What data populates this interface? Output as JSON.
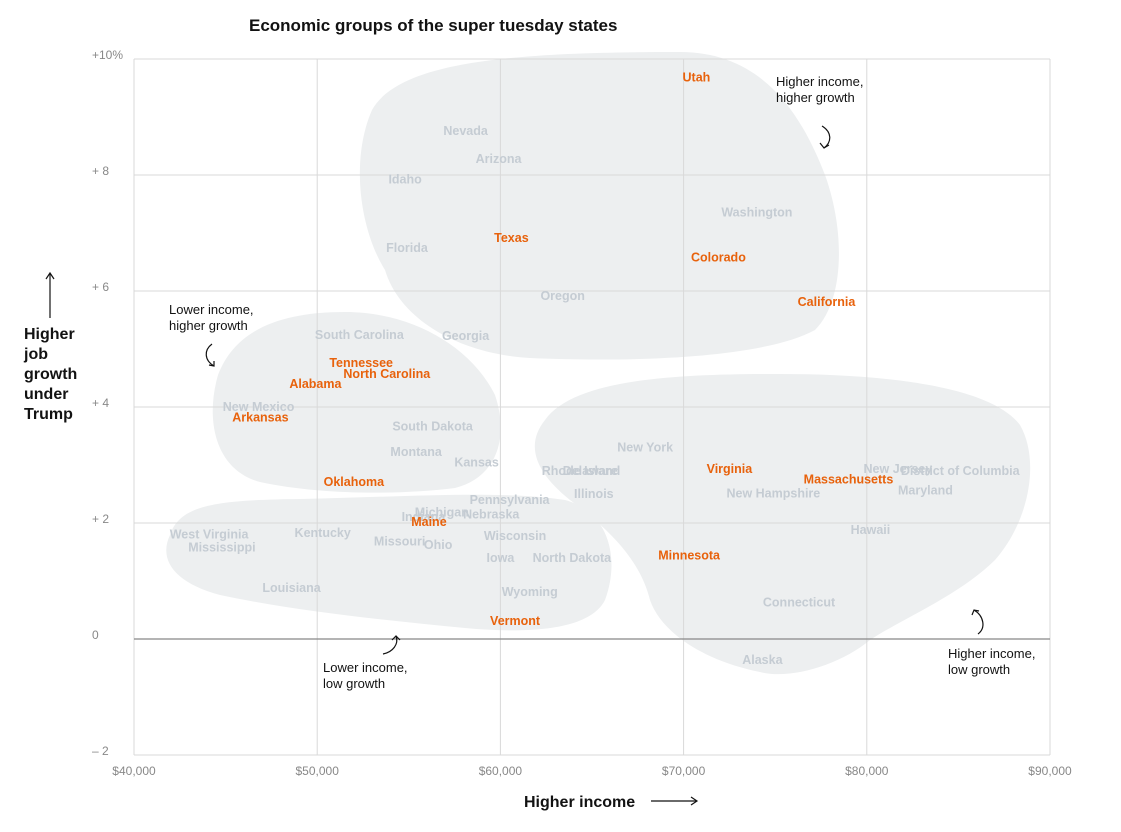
{
  "chart_data": {
    "type": "scatter",
    "title": "Economic groups of the super tuesday states",
    "xlabel": "Higher income",
    "ylabel_lines": [
      "Higher",
      "job",
      "growth",
      "under",
      "Trump"
    ],
    "xlim": [
      40000,
      90000
    ],
    "ylim": [
      -2,
      10
    ],
    "x_ticks": [
      {
        "value": 40000,
        "label": "$40,000"
      },
      {
        "value": 50000,
        "label": "$50,000"
      },
      {
        "value": 60000,
        "label": "$60,000"
      },
      {
        "value": 70000,
        "label": "$70,000"
      },
      {
        "value": 80000,
        "label": "$80,000"
      },
      {
        "value": 90000,
        "label": "$90,000"
      }
    ],
    "y_ticks": [
      {
        "value": 10,
        "label": "+10%"
      },
      {
        "value": 8,
        "label": "+ 8"
      },
      {
        "value": 6,
        "label": "+ 6"
      },
      {
        "value": 4,
        "label": "+ 4"
      },
      {
        "value": 2,
        "label": "+ 2"
      },
      {
        "value": 0,
        "label": "0"
      },
      {
        "value": -2,
        "label": "– 2"
      }
    ],
    "states": [
      {
        "name": "Utah",
        "x": 70700,
        "y": 9.68,
        "super_tuesday": true
      },
      {
        "name": "Nevada",
        "x": 58100,
        "y": 8.76,
        "super_tuesday": false
      },
      {
        "name": "Arizona",
        "x": 59900,
        "y": 8.28,
        "super_tuesday": false
      },
      {
        "name": "Idaho",
        "x": 54800,
        "y": 7.92,
        "super_tuesday": false
      },
      {
        "name": "Washington",
        "x": 74000,
        "y": 7.35,
        "super_tuesday": false
      },
      {
        "name": "Texas",
        "x": 60600,
        "y": 6.91,
        "super_tuesday": true
      },
      {
        "name": "Florida",
        "x": 54900,
        "y": 6.74,
        "super_tuesday": false
      },
      {
        "name": "Colorado",
        "x": 71900,
        "y": 6.58,
        "super_tuesday": true
      },
      {
        "name": "Oregon",
        "x": 63400,
        "y": 5.91,
        "super_tuesday": false
      },
      {
        "name": "California",
        "x": 77800,
        "y": 5.81,
        "super_tuesday": true
      },
      {
        "name": "South Carolina",
        "x": 52300,
        "y": 5.24,
        "super_tuesday": false
      },
      {
        "name": "Georgia",
        "x": 58100,
        "y": 5.22,
        "super_tuesday": false
      },
      {
        "name": "Tennessee",
        "x": 52400,
        "y": 4.76,
        "super_tuesday": true
      },
      {
        "name": "North Carolina",
        "x": 53800,
        "y": 4.57,
        "super_tuesday": true
      },
      {
        "name": "Alabama",
        "x": 49900,
        "y": 4.4,
        "super_tuesday": true
      },
      {
        "name": "New Mexico",
        "x": 46800,
        "y": 4.0,
        "super_tuesday": false
      },
      {
        "name": "Arkansas",
        "x": 46900,
        "y": 3.82,
        "super_tuesday": true
      },
      {
        "name": "South Dakota",
        "x": 56300,
        "y": 3.66,
        "super_tuesday": false
      },
      {
        "name": "Montana",
        "x": 55400,
        "y": 3.22,
        "super_tuesday": false
      },
      {
        "name": "Kansas",
        "x": 58700,
        "y": 3.04,
        "super_tuesday": false
      },
      {
        "name": "Oklahoma",
        "x": 52000,
        "y": 2.71,
        "super_tuesday": true
      },
      {
        "name": "New York",
        "x": 67900,
        "y": 3.3,
        "super_tuesday": false
      },
      {
        "name": "Virginia",
        "x": 72500,
        "y": 2.93,
        "super_tuesday": true
      },
      {
        "name": "Delaware",
        "x": 64900,
        "y": 2.9,
        "super_tuesday": false
      },
      {
        "name": "Rhode Island",
        "x": 64400,
        "y": 2.9,
        "super_tuesday": false
      },
      {
        "name": "New Jersey",
        "x": 81700,
        "y": 2.93,
        "super_tuesday": false
      },
      {
        "name": "District of Columbia",
        "x": 85100,
        "y": 2.9,
        "super_tuesday": false
      },
      {
        "name": "Massachusetts",
        "x": 79000,
        "y": 2.75,
        "super_tuesday": true
      },
      {
        "name": "Maryland",
        "x": 83200,
        "y": 2.56,
        "super_tuesday": false
      },
      {
        "name": "New Hampshire",
        "x": 74900,
        "y": 2.51,
        "super_tuesday": false
      },
      {
        "name": "Illinois",
        "x": 65100,
        "y": 2.5,
        "super_tuesday": false
      },
      {
        "name": "Pennsylvania",
        "x": 60500,
        "y": 2.4,
        "super_tuesday": false
      },
      {
        "name": "Nebraska",
        "x": 59500,
        "y": 2.15,
        "super_tuesday": false
      },
      {
        "name": "Michigan",
        "x": 56800,
        "y": 2.18,
        "super_tuesday": false
      },
      {
        "name": "Indiana",
        "x": 55800,
        "y": 2.1,
        "super_tuesday": false
      },
      {
        "name": "Maine",
        "x": 56100,
        "y": 2.02,
        "super_tuesday": true
      },
      {
        "name": "Wisconsin",
        "x": 60800,
        "y": 1.78,
        "super_tuesday": false
      },
      {
        "name": "Missouri",
        "x": 54500,
        "y": 1.68,
        "super_tuesday": false
      },
      {
        "name": "Ohio",
        "x": 56600,
        "y": 1.62,
        "super_tuesday": false
      },
      {
        "name": "West Virginia",
        "x": 44100,
        "y": 1.8,
        "super_tuesday": false
      },
      {
        "name": "Kentucky",
        "x": 50300,
        "y": 1.83,
        "super_tuesday": false
      },
      {
        "name": "Mississippi",
        "x": 44800,
        "y": 1.58,
        "super_tuesday": false
      },
      {
        "name": "Hawaii",
        "x": 80200,
        "y": 1.88,
        "super_tuesday": false
      },
      {
        "name": "Iowa",
        "x": 60000,
        "y": 1.4,
        "super_tuesday": false
      },
      {
        "name": "North Dakota",
        "x": 63900,
        "y": 1.4,
        "super_tuesday": false
      },
      {
        "name": "Minnesota",
        "x": 70300,
        "y": 1.44,
        "super_tuesday": true
      },
      {
        "name": "Louisiana",
        "x": 48600,
        "y": 0.88,
        "super_tuesday": false
      },
      {
        "name": "Wyoming",
        "x": 61600,
        "y": 0.81,
        "super_tuesday": false
      },
      {
        "name": "Connecticut",
        "x": 76300,
        "y": 0.63,
        "super_tuesday": false
      },
      {
        "name": "Vermont",
        "x": 60800,
        "y": 0.31,
        "super_tuesday": true
      },
      {
        "name": "Alaska",
        "x": 74300,
        "y": -0.36,
        "super_tuesday": false
      }
    ],
    "group_labels": [
      {
        "lines": [
          "Higher income,",
          "higher growth"
        ]
      },
      {
        "lines": [
          "Lower income,",
          "higher growth"
        ]
      },
      {
        "lines": [
          "Lower income,",
          "low growth"
        ]
      },
      {
        "lines": [
          "Higher income,",
          "low growth"
        ]
      }
    ],
    "colors": {
      "highlight": "#e8620c",
      "muted": "#c5ccd3",
      "group_fill": "#edeff0"
    },
    "grid": true
  }
}
